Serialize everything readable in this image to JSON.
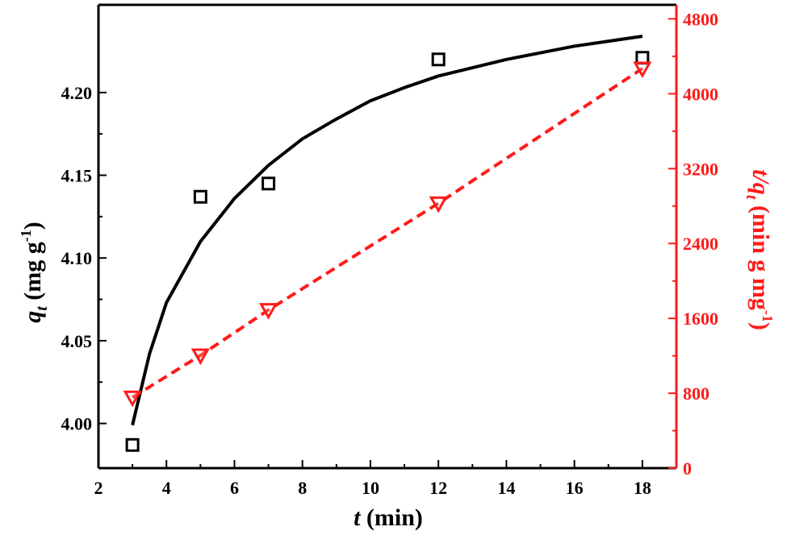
{
  "chart_data": {
    "type": "line",
    "xlabel": {
      "italic": "t",
      "rest": " (min)"
    },
    "ylabel_left": {
      "italic": "q",
      "sub": "t",
      "rest": " (mg g",
      "sup": "-1",
      "close": ")"
    },
    "ylabel_right": {
      "italic": "t/q",
      "sub": "t",
      "rest": " (min g mg",
      "sup": "-1",
      "close": ")"
    },
    "xlim": [
      2,
      19
    ],
    "ylim_left": [
      3.973,
      4.253
    ],
    "ylim_right": [
      0,
      4950
    ],
    "x_ticks": [
      2,
      4,
      6,
      8,
      10,
      12,
      14,
      16,
      18
    ],
    "y_left_ticks": [
      4.0,
      4.05,
      4.1,
      4.15,
      4.2
    ],
    "y_left_tick_labels": [
      "4.00",
      "4.05",
      "4.10",
      "4.15",
      "4.20"
    ],
    "y_right_ticks": [
      0,
      800,
      1600,
      2400,
      3200,
      4000,
      4800
    ],
    "series": [
      {
        "axis": "left",
        "marker": "square",
        "color": "#000000",
        "x": [
          3,
          5,
          7,
          12,
          18
        ],
        "y": [
          3.987,
          4.137,
          4.145,
          4.22,
          4.221
        ]
      },
      {
        "axis": "left",
        "style": "solid-fit",
        "color": "#000000",
        "x": [
          3.0,
          3.5,
          4.0,
          5.0,
          6.0,
          7.0,
          8.0,
          9.0,
          10.0,
          11.0,
          12.0,
          14.0,
          16.0,
          18.0
        ],
        "y": [
          3.999,
          4.042,
          4.073,
          4.11,
          4.136,
          4.156,
          4.172,
          4.184,
          4.195,
          4.203,
          4.21,
          4.22,
          4.228,
          4.234
        ]
      },
      {
        "axis": "right",
        "marker": "triangle-down",
        "style": "dashed",
        "color": "#ff1a1a",
        "x": [
          3,
          5,
          7,
          12,
          18
        ],
        "y": [
          755,
          1205,
          1690,
          2830,
          4270
        ]
      }
    ],
    "colors": {
      "left": "#000000",
      "right": "#ff1a1a"
    },
    "grid": false,
    "legend": "none"
  }
}
